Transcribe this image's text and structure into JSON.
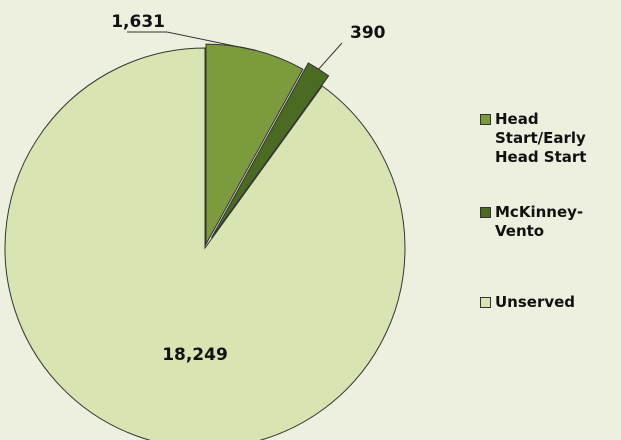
{
  "chart_data": {
    "type": "pie",
    "categories": [
      "Head Start/Early Head Start",
      "McKinney-Vento",
      "Unserved"
    ],
    "values": [
      1631,
      390,
      18249
    ],
    "value_labels": [
      "1,631",
      "390",
      "18,249"
    ],
    "colors": [
      "#7b9b3c",
      "#4b6a22",
      "#d8e5b3"
    ],
    "legend": "right"
  }
}
